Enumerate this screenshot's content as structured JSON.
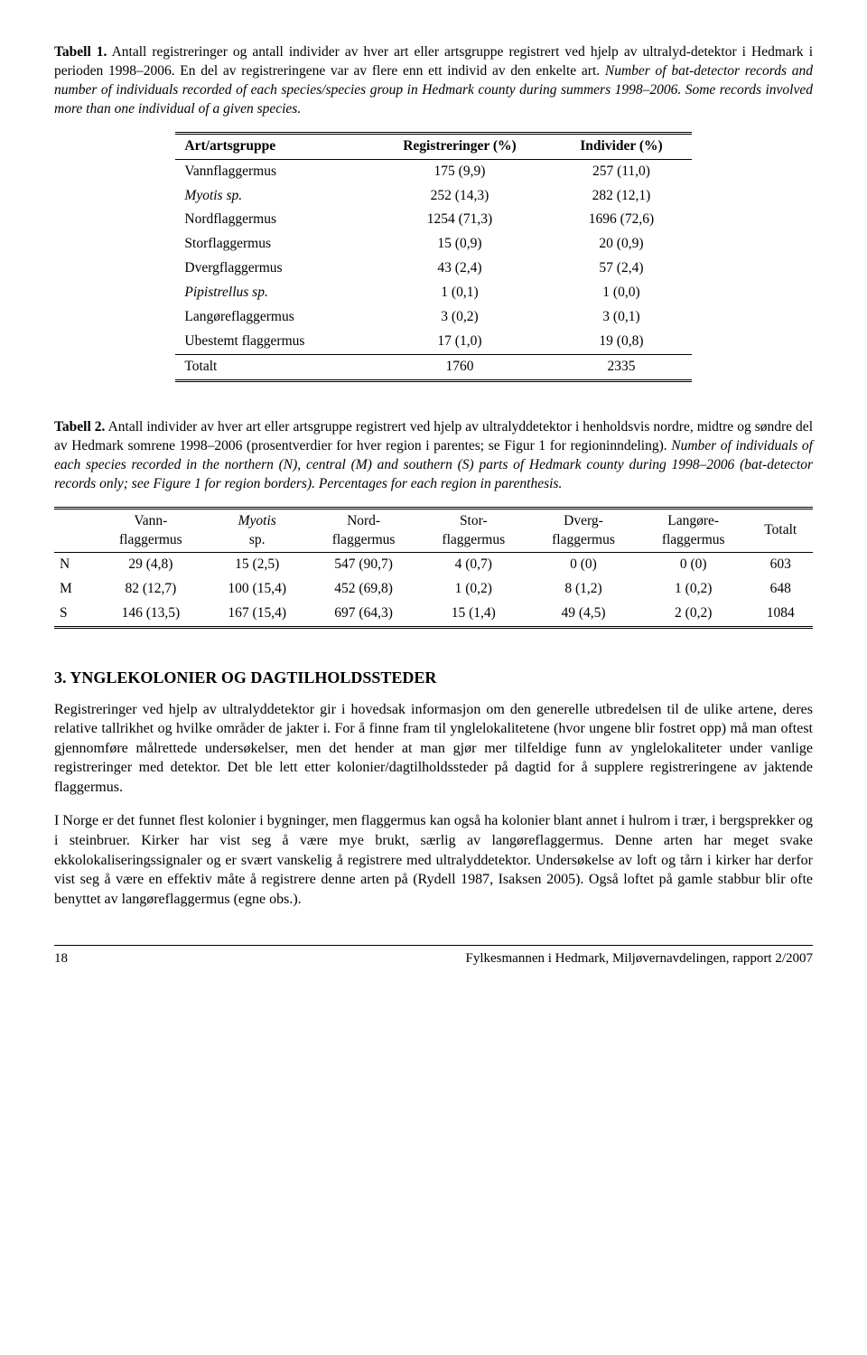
{
  "table1": {
    "caption_bold": "Tabell 1.",
    "caption_text": " Antall registreringer og antall individer av hver art eller artsgruppe registrert ved hjelp av ultralyd-detektor i Hedmark i perioden 1998–2006. En del av registreringene var av flere enn ett individ av den enkelte art. ",
    "caption_italic": "Number of bat-detector records and number of individuals recorded of each species/species group in Hedmark county during summers 1998–2006. Some records involved more than one individual of a given species.",
    "headers": [
      "Art/artsgruppe",
      "Registreringer (%)",
      "Individer (%)"
    ],
    "rows": [
      {
        "name": "Vannflaggermus",
        "italic": false,
        "c1": "175 (9,9)",
        "c2": "257 (11,0)"
      },
      {
        "name": "Myotis sp.",
        "italic": true,
        "c1": "252 (14,3)",
        "c2": "282 (12,1)"
      },
      {
        "name": "Nordflaggermus",
        "italic": false,
        "c1": "1254 (71,3)",
        "c2": "1696 (72,6)"
      },
      {
        "name": "Storflaggermus",
        "italic": false,
        "c1": "15 (0,9)",
        "c2": "20 (0,9)"
      },
      {
        "name": "Dvergflaggermus",
        "italic": false,
        "c1": "43 (2,4)",
        "c2": "57 (2,4)"
      },
      {
        "name": "Pipistrellus sp.",
        "italic": true,
        "c1": "1 (0,1)",
        "c2": "1 (0,0)"
      },
      {
        "name": "Langøreflaggermus",
        "italic": false,
        "c1": "3 (0,2)",
        "c2": "3 (0,1)"
      },
      {
        "name": "Ubestemt flaggermus",
        "italic": false,
        "c1": "17 (1,0)",
        "c2": "19 (0,8)"
      },
      {
        "name": "Totalt",
        "italic": false,
        "c1": "1760",
        "c2": "2335"
      }
    ]
  },
  "table2": {
    "caption_bold": "Tabell 2.",
    "caption_text": " Antall individer av hver art eller artsgruppe registrert ved hjelp av ultralyddetektor i henholdsvis nordre, midtre og søndre del av Hedmark somrene 1998–2006 (prosentverdier for hver region i parentes; se Figur 1 for regioninndeling). ",
    "caption_italic": "Number of individuals of each species recorded in the northern (N), central (M) and southern (S) parts of Hedmark county during 1998–2006 (bat-detector records only; see Figure 1 for region borders). Percentages for each region in parenthesis.",
    "headers": [
      "",
      "Vann-\nflaggermus",
      "Myotis\nsp.",
      "Nord-\nflaggermus",
      "Stor-\nflaggermus",
      "Dverg-\nflaggermus",
      "Langøre-\nflaggermus",
      "Totalt"
    ],
    "header_italic": [
      false,
      false,
      true,
      false,
      false,
      false,
      false,
      false
    ],
    "rows": [
      [
        "N",
        "29 (4,8)",
        "15 (2,5)",
        "547 (90,7)",
        "4 (0,7)",
        "0 (0)",
        "0 (0)",
        "603"
      ],
      [
        "M",
        "82 (12,7)",
        "100 (15,4)",
        "452 (69,8)",
        "1 (0,2)",
        "8 (1,2)",
        "1 (0,2)",
        "648"
      ],
      [
        "S",
        "146 (13,5)",
        "167 (15,4)",
        "697 (64,3)",
        "15 (1,4)",
        "49 (4,5)",
        "2 (0,2)",
        "1084"
      ]
    ]
  },
  "section": {
    "heading": "3.   YNGLEKOLONIER OG DAGTILHOLDSSTEDER",
    "para1": "Registreringer ved hjelp av ultralyddetektor gir i hovedsak informasjon om den generelle utbredelsen til de ulike artene, deres relative tallrikhet og hvilke områder de jakter i. For å finne fram til ynglelokalitetene (hvor ungene blir fostret opp) må man oftest gjennomføre målrettede undersøkelser, men det hender at man gjør mer tilfeldige funn av ynglelokaliteter under vanlige registreringer med detektor. Det ble lett etter kolonier/dagtilholdssteder på dagtid for å supplere registreringene av jaktende flaggermus.",
    "para2": "I Norge er det funnet flest kolonier i bygninger, men flaggermus kan også ha kolonier blant annet i hulrom i trær, i bergsprekker og i steinbruer. Kirker har vist seg å være mye brukt, særlig av langøreflaggermus. Denne arten har meget svake ekkolokaliseringssignaler og er svært vanskelig å registrere med ultralyddetektor. Undersøkelse av loft og tårn i kirker har derfor vist seg å være en effektiv måte å registrere denne arten på (Rydell 1987, Isaksen 2005). Også loftet på gamle stabbur blir ofte benyttet av langøreflaggermus (egne obs.)."
  },
  "footer": {
    "page": "18",
    "text": "Fylkesmannen i Hedmark, Miljøvernavdelingen, rapport 2/2007"
  }
}
